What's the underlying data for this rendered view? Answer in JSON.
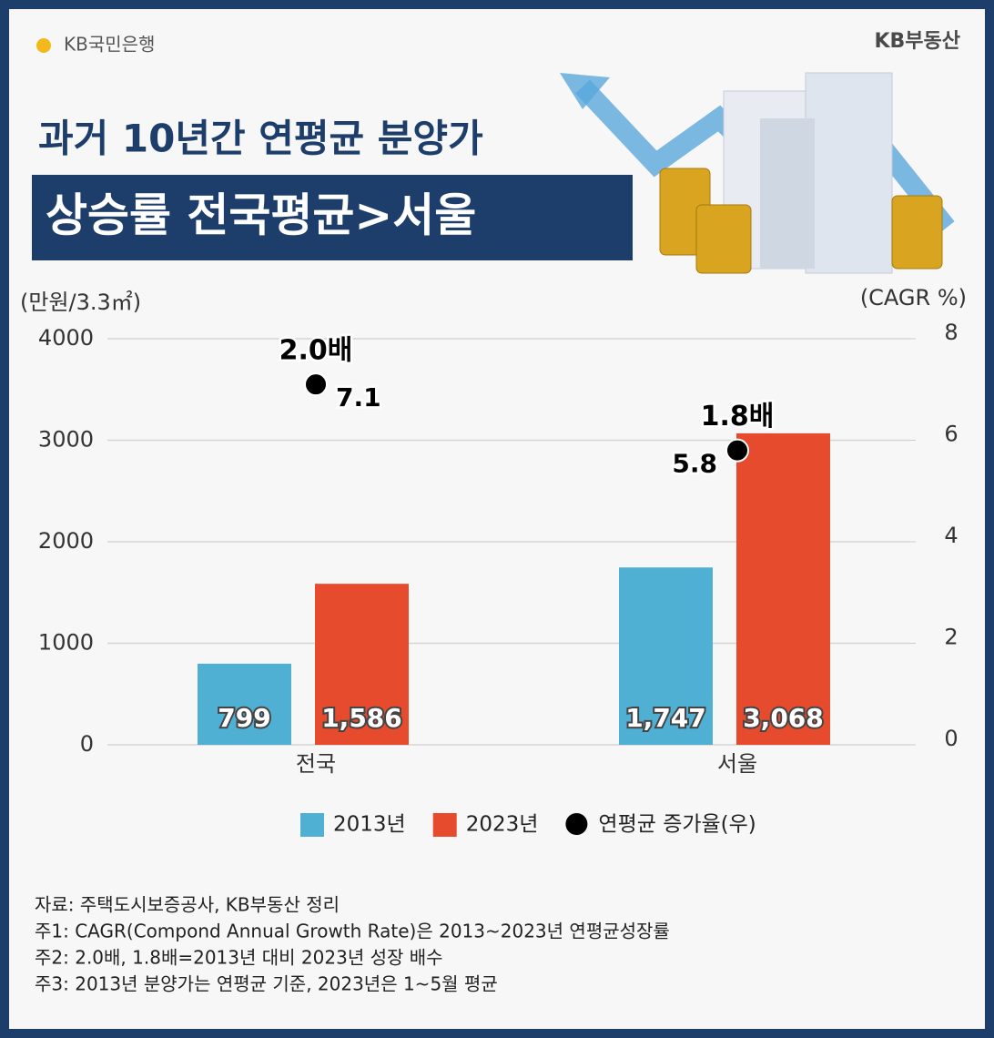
{
  "chart_data": {
    "type": "bar",
    "logo_left": "KB국민은행",
    "logo_right": "KB부동산",
    "title": "과거 10년간 연평균 분양가",
    "subtitle": "상승률 전국평균>서울",
    "y_label": "(만원/3.3㎡)",
    "y2_label": "(CAGR %)",
    "categories": [
      "전국",
      "서울"
    ],
    "series": [
      {
        "name": "2013년",
        "color": "#4fb0d4",
        "values": [
          799,
          1747
        ],
        "value_labels": [
          "799",
          "1,747"
        ]
      },
      {
        "name": "2023년",
        "color": "#e64b2e",
        "values": [
          1586,
          3068
        ],
        "value_labels": [
          "1,586",
          "3,068"
        ]
      },
      {
        "name": "연평균 증가율(우)",
        "type": "scatter",
        "axis": "y2",
        "color": "#000000",
        "values": [
          7.1,
          5.8
        ]
      }
    ],
    "annotations": [
      "2.0배",
      "1.8배"
    ],
    "ylim": [
      0,
      4000
    ],
    "yticks": [
      0,
      1000,
      2000,
      3000,
      4000
    ],
    "y2lim": [
      0,
      8
    ],
    "y2ticks": [
      0,
      2,
      4,
      6,
      8
    ],
    "grid": true,
    "legend": "bottom",
    "notes": [
      "자료: 주택도시보증공사, KB부동산 정리",
      "주1: CAGR(Compond Annual Growth Rate)은 2013~2023년 연평균성장률",
      "주2: 2.0배, 1.8배=2013년 대비 2023년 성장 배수",
      "주3: 2013년 분양가는 연평균 기준, 2023년은 1~5월 평균"
    ]
  }
}
